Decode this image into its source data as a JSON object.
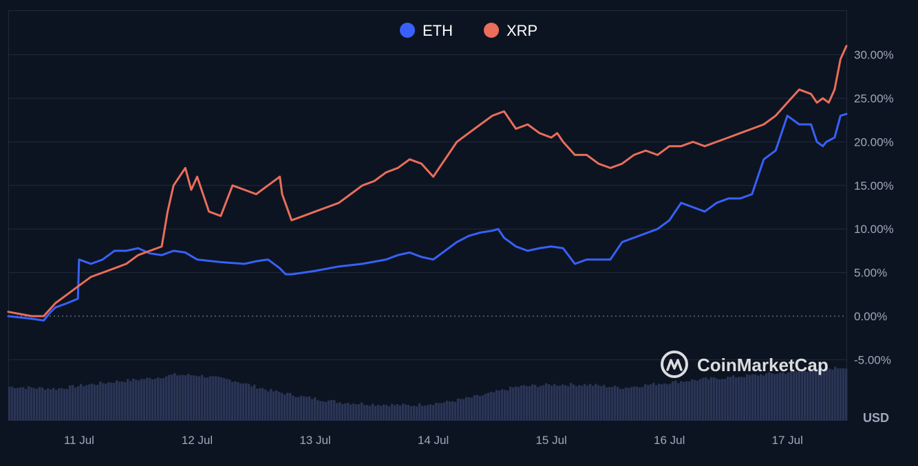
{
  "chart_data": {
    "type": "line",
    "title": "",
    "watermark": "CoinMarketCap",
    "currency_label": "USD",
    "x_ticks": [
      "11 Jul",
      "12 Jul",
      "13 Jul",
      "14 Jul",
      "15 Jul",
      "16 Jul",
      "17 Jul"
    ],
    "y_ticks": [
      "30.00%",
      "25.00%",
      "20.00%",
      "15.00%",
      "10.00%",
      "5.00%",
      "0.00%",
      "-5.00%"
    ],
    "y_tick_values": [
      30,
      25,
      20,
      15,
      10,
      5,
      0,
      -5
    ],
    "ylim": [
      -5,
      32
    ],
    "x_range_days": [
      10.4,
      17.5
    ],
    "grid": true,
    "legend_position": "top-center",
    "series": [
      {
        "name": "ETH",
        "color": "#3861fb",
        "x": [
          10.4,
          10.6,
          10.7,
          10.76,
          10.8,
          10.9,
          10.99,
          11.0,
          11.1,
          11.2,
          11.3,
          11.4,
          11.5,
          11.6,
          11.7,
          11.8,
          11.9,
          12.0,
          12.2,
          12.4,
          12.5,
          12.6,
          12.7,
          12.75,
          12.8,
          12.9,
          13.0,
          13.2,
          13.4,
          13.6,
          13.7,
          13.8,
          13.9,
          14.0,
          14.1,
          14.2,
          14.3,
          14.4,
          14.5,
          14.55,
          14.6,
          14.7,
          14.8,
          14.9,
          15.0,
          15.1,
          15.2,
          15.3,
          15.4,
          15.5,
          15.6,
          15.7,
          15.8,
          15.9,
          16.0,
          16.1,
          16.2,
          16.3,
          16.4,
          16.5,
          16.6,
          16.7,
          16.75,
          16.8,
          16.9,
          17.0,
          17.1,
          17.2,
          17.25,
          17.3,
          17.33,
          17.4,
          17.45,
          17.5
        ],
        "values": [
          0.0,
          -0.3,
          -0.5,
          0.5,
          1.0,
          1.5,
          2.0,
          6.5,
          6.0,
          6.5,
          7.5,
          7.5,
          7.8,
          7.2,
          7.0,
          7.5,
          7.3,
          6.5,
          6.2,
          6.0,
          6.3,
          6.5,
          5.5,
          4.8,
          4.8,
          5.0,
          5.2,
          5.7,
          6.0,
          6.5,
          7.0,
          7.3,
          6.8,
          6.5,
          7.5,
          8.5,
          9.2,
          9.6,
          9.8,
          10.0,
          9.0,
          8.0,
          7.5,
          7.8,
          8.0,
          7.8,
          6.0,
          6.5,
          6.5,
          6.5,
          8.5,
          9.0,
          9.5,
          10.0,
          11.0,
          13.0,
          12.5,
          12.0,
          13.0,
          13.5,
          13.5,
          14.0,
          16.0,
          18.0,
          19.0,
          23.0,
          22.0,
          22.0,
          20.0,
          19.5,
          20.0,
          20.5,
          23.0,
          23.2
        ]
      },
      {
        "name": "XRP",
        "color": "#ea6e5b",
        "x": [
          10.4,
          10.6,
          10.7,
          10.8,
          10.9,
          11.0,
          11.1,
          11.2,
          11.3,
          11.4,
          11.5,
          11.6,
          11.7,
          11.75,
          11.8,
          11.9,
          11.95,
          12.0,
          12.05,
          12.1,
          12.2,
          12.3,
          12.4,
          12.5,
          12.6,
          12.7,
          12.72,
          12.8,
          12.9,
          13.0,
          13.1,
          13.2,
          13.3,
          13.4,
          13.5,
          13.6,
          13.7,
          13.8,
          13.9,
          14.0,
          14.1,
          14.2,
          14.3,
          14.4,
          14.5,
          14.6,
          14.65,
          14.7,
          14.8,
          14.9,
          15.0,
          15.05,
          15.1,
          15.2,
          15.3,
          15.4,
          15.5,
          15.6,
          15.7,
          15.8,
          15.9,
          16.0,
          16.1,
          16.2,
          16.3,
          16.4,
          16.5,
          16.6,
          16.7,
          16.8,
          16.9,
          17.0,
          17.1,
          17.2,
          17.25,
          17.3,
          17.35,
          17.4,
          17.45,
          17.5
        ],
        "values": [
          0.5,
          0.0,
          0.0,
          1.5,
          2.5,
          3.5,
          4.5,
          5.0,
          5.5,
          6.0,
          7.0,
          7.5,
          8.0,
          12.0,
          15.0,
          17.0,
          14.5,
          16.0,
          14.0,
          12.0,
          11.5,
          15.0,
          14.5,
          14.0,
          15.0,
          16.0,
          14.0,
          11.0,
          11.5,
          12.0,
          12.5,
          13.0,
          14.0,
          15.0,
          15.5,
          16.5,
          17.0,
          18.0,
          17.5,
          16.0,
          18.0,
          20.0,
          21.0,
          22.0,
          23.0,
          23.5,
          22.5,
          21.5,
          22.0,
          21.0,
          20.5,
          21.0,
          20.0,
          18.5,
          18.5,
          17.5,
          17.0,
          17.5,
          18.5,
          19.0,
          18.5,
          19.5,
          19.5,
          20.0,
          19.5,
          20.0,
          20.5,
          21.0,
          21.5,
          22.0,
          23.0,
          24.5,
          26.0,
          25.5,
          24.5,
          25.0,
          24.5,
          26.0,
          29.5,
          31.0
        ]
      }
    ],
    "volume": {
      "note": "bars behind chart, relative height 0-1",
      "x": [
        10.4,
        10.8,
        11.0,
        11.3,
        11.6,
        11.8,
        12.0,
        12.3,
        12.6,
        12.9,
        13.2,
        13.5,
        13.8,
        14.1,
        14.4,
        14.7,
        15.0,
        15.3,
        15.6,
        15.9,
        16.2,
        16.5,
        16.8,
        17.1,
        17.5
      ],
      "values": [
        0.62,
        0.58,
        0.64,
        0.72,
        0.78,
        0.85,
        0.84,
        0.74,
        0.55,
        0.42,
        0.32,
        0.28,
        0.26,
        0.32,
        0.45,
        0.62,
        0.66,
        0.66,
        0.6,
        0.68,
        0.75,
        0.8,
        0.86,
        0.92,
        1.0
      ]
    }
  }
}
